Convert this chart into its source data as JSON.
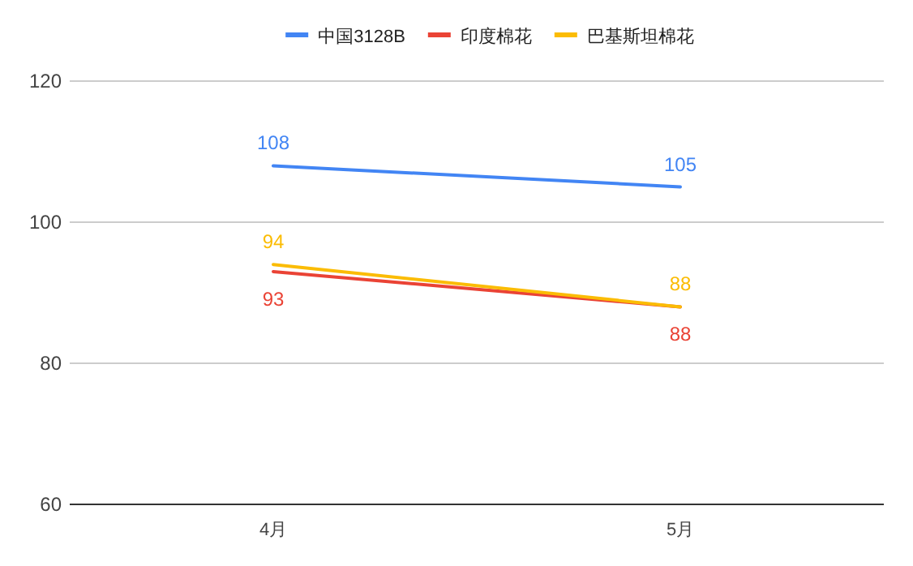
{
  "chart_data": {
    "type": "line",
    "categories": [
      "4月",
      "5月"
    ],
    "series": [
      {
        "name": "中国3128B",
        "color": "#4285f4",
        "values": [
          108,
          105
        ]
      },
      {
        "name": "印度棉花",
        "color": "#ea4335",
        "values": [
          93,
          88
        ]
      },
      {
        "name": "巴基斯坦棉花",
        "color": "#fbbc04",
        "values": [
          94,
          88
        ]
      }
    ],
    "ylim": [
      60,
      120
    ],
    "yticks": [
      60,
      80,
      100,
      120
    ],
    "grid": "y",
    "legend": "top",
    "data_labels": true,
    "marker": "none",
    "line_style": "solid"
  }
}
